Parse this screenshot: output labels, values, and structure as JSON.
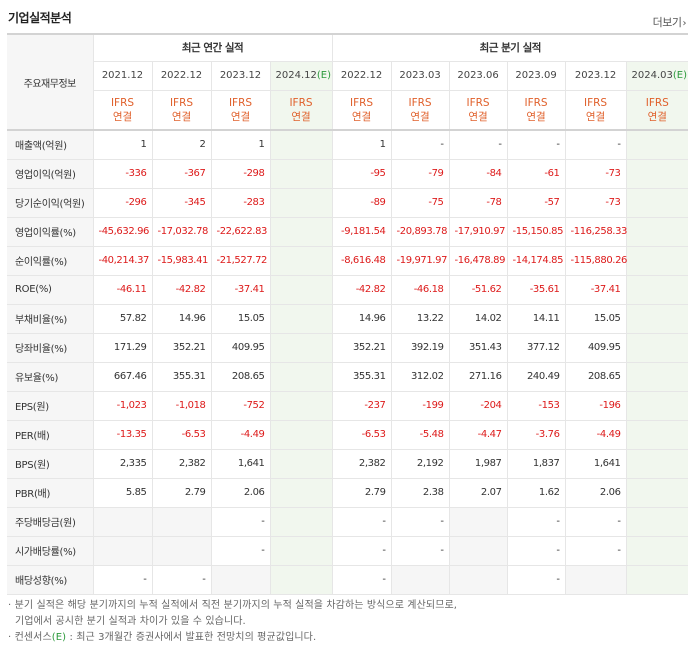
{
  "title": "기업실적분석",
  "more_label": "더보기",
  "header": {
    "row_label": "주요재무정보",
    "annual_group": "최근 연간 실적",
    "quarter_group": "최근 분기 실적",
    "periods": [
      {
        "date": "2021.12",
        "ifrs": "IFRS",
        "basis": "연결"
      },
      {
        "date": "2022.12",
        "ifrs": "IFRS",
        "basis": "연결"
      },
      {
        "date": "2023.12",
        "ifrs": "IFRS",
        "basis": "연결"
      },
      {
        "date": "2024.12",
        "est_mark": "(E)",
        "ifrs": "IFRS",
        "basis": "연결"
      },
      {
        "date": "2022.12",
        "ifrs": "IFRS",
        "basis": "연결"
      },
      {
        "date": "2023.03",
        "ifrs": "IFRS",
        "basis": "연결"
      },
      {
        "date": "2023.06",
        "ifrs": "IFRS",
        "basis": "연결"
      },
      {
        "date": "2023.09",
        "ifrs": "IFRS",
        "basis": "연결"
      },
      {
        "date": "2023.12",
        "ifrs": "IFRS",
        "basis": "연결"
      },
      {
        "date": "2024.03",
        "est_mark": "(E)",
        "ifrs": "IFRS",
        "basis": "연결"
      }
    ]
  },
  "rows": [
    {
      "label": "매출액(억원)",
      "values": [
        "1",
        "2",
        "1",
        "",
        "1",
        "-",
        "-",
        "-",
        "-",
        ""
      ]
    },
    {
      "label": "영업이익(억원)",
      "values": [
        "-336",
        "-367",
        "-298",
        "",
        "-95",
        "-79",
        "-84",
        "-61",
        "-73",
        ""
      ]
    },
    {
      "label": "당기순이익(억원)",
      "values": [
        "-296",
        "-345",
        "-283",
        "",
        "-89",
        "-75",
        "-78",
        "-57",
        "-73",
        ""
      ]
    },
    {
      "label": "영업이익률(%)",
      "values": [
        "-45,632.96",
        "-17,032.78",
        "-22,622.83",
        "",
        "-9,181.54",
        "-20,893.78",
        "-17,910.97",
        "-15,150.85",
        "-116,258.33",
        ""
      ]
    },
    {
      "label": "순이익률(%)",
      "values": [
        "-40,214.37",
        "-15,983.41",
        "-21,527.72",
        "",
        "-8,616.48",
        "-19,971.97",
        "-16,478.89",
        "-14,174.85",
        "-115,880.26",
        ""
      ]
    },
    {
      "label": "ROE(%)",
      "values": [
        "-46.11",
        "-42.82",
        "-37.41",
        "",
        "-42.82",
        "-46.18",
        "-51.62",
        "-35.61",
        "-37.41",
        ""
      ]
    },
    {
      "label": "부채비율(%)",
      "values": [
        "57.82",
        "14.96",
        "15.05",
        "",
        "14.96",
        "13.22",
        "14.02",
        "14.11",
        "15.05",
        ""
      ]
    },
    {
      "label": "당좌비율(%)",
      "values": [
        "171.29",
        "352.21",
        "409.95",
        "",
        "352.21",
        "392.19",
        "351.43",
        "377.12",
        "409.95",
        ""
      ]
    },
    {
      "label": "유보율(%)",
      "values": [
        "667.46",
        "355.31",
        "208.65",
        "",
        "355.31",
        "312.02",
        "271.16",
        "240.49",
        "208.65",
        ""
      ]
    },
    {
      "label": "EPS(원)",
      "values": [
        "-1,023",
        "-1,018",
        "-752",
        "",
        "-237",
        "-199",
        "-204",
        "-153",
        "-196",
        ""
      ]
    },
    {
      "label": "PER(배)",
      "values": [
        "-13.35",
        "-6.53",
        "-4.49",
        "",
        "-6.53",
        "-5.48",
        "-4.47",
        "-3.76",
        "-4.49",
        ""
      ]
    },
    {
      "label": "BPS(원)",
      "values": [
        "2,335",
        "2,382",
        "1,641",
        "",
        "2,382",
        "2,192",
        "1,987",
        "1,837",
        "1,641",
        ""
      ]
    },
    {
      "label": "PBR(배)",
      "values": [
        "5.85",
        "2.79",
        "2.06",
        "",
        "2.79",
        "2.38",
        "2.07",
        "1.62",
        "2.06",
        ""
      ]
    },
    {
      "label": "주당배당금(원)",
      "values": [
        null,
        null,
        "-",
        "",
        "-",
        "-",
        null,
        "-",
        "-",
        ""
      ]
    },
    {
      "label": "시가배당률(%)",
      "values": [
        null,
        null,
        "-",
        "",
        "-",
        "-",
        null,
        "-",
        "-",
        ""
      ]
    },
    {
      "label": "배당성향(%)",
      "values": [
        "-",
        "-",
        null,
        "",
        "-",
        null,
        null,
        "-",
        null,
        ""
      ]
    }
  ],
  "notes": {
    "line1": "분기 실적은 해당 분기까지의 누적 실적에서 직전 분기까지의 누적 실적을 차감하는 방식으로 계산되므로,",
    "line2": "기업에서 공시한 분기 실적과 차이가 있을 수 있습니다.",
    "line3_pre": "컨센서스",
    "line3_mark": "(E)",
    "line3_post": " : 최근 3개월간 증권사에서 발표한 전망치의 평균값입니다."
  }
}
